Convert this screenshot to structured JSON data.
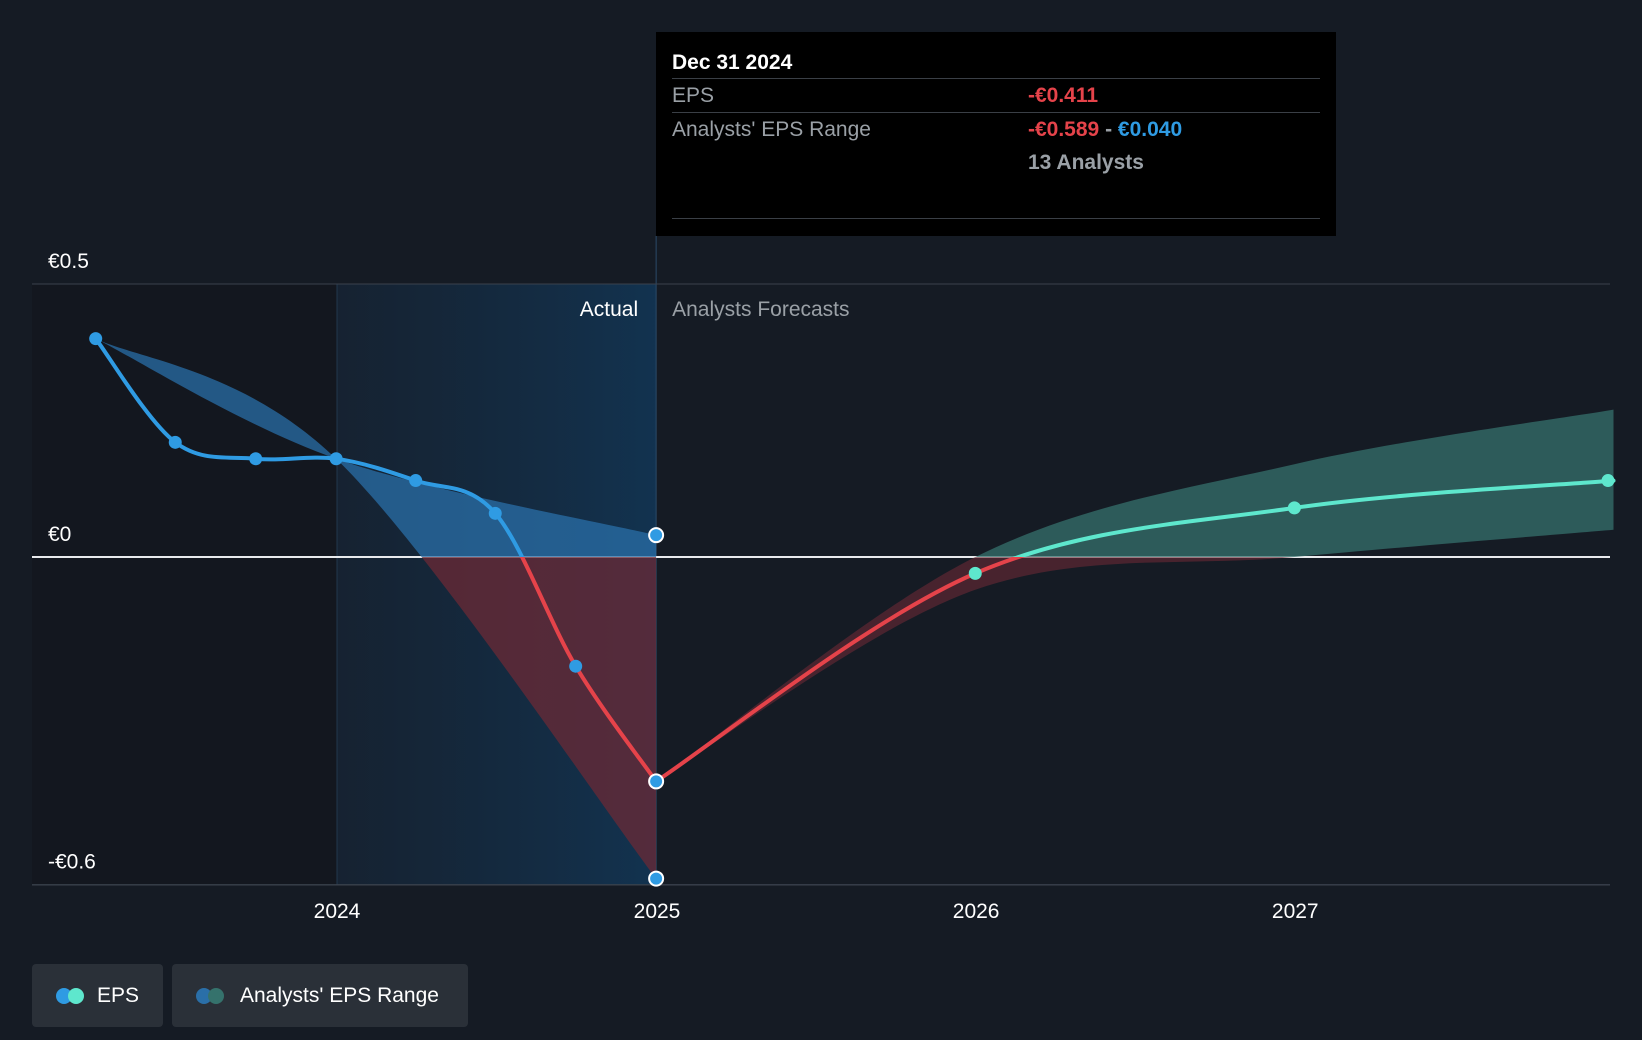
{
  "chart_data": {
    "type": "line",
    "y_axis": {
      "tick_labels": [
        "€0.5",
        "€0",
        "-€0.6"
      ],
      "ticks": [
        0.5,
        0,
        -0.6
      ],
      "ylim": [
        -0.6,
        0.5
      ]
    },
    "x_axis": {
      "tick_labels": [
        "2024",
        "2025",
        "2026",
        "2027"
      ]
    },
    "zones": {
      "actual_label": "Actual",
      "forecast_label": "Analysts Forecasts"
    },
    "series": [
      {
        "name": "EPS",
        "points": [
          {
            "x": "2023-03-31",
            "y": 0.4
          },
          {
            "x": "2023-06-30",
            "y": 0.21
          },
          {
            "x": "2023-09-30",
            "y": 0.18
          },
          {
            "x": "2023-12-31",
            "y": 0.18
          },
          {
            "x": "2024-03-31",
            "y": 0.14
          },
          {
            "x": "2024-06-30",
            "y": 0.08
          },
          {
            "x": "2024-09-30",
            "y": -0.2
          },
          {
            "x": "2024-12-31",
            "y": -0.411
          },
          {
            "x": "2025-12-31",
            "y": -0.03
          },
          {
            "x": "2026-12-31",
            "y": 0.09
          },
          {
            "x": "2027-12-31",
            "y": 0.14
          }
        ]
      },
      {
        "name": "Analysts' EPS Range",
        "past": [
          {
            "x": "2023-03-31",
            "low": 0.4,
            "high": 0.4
          },
          {
            "x": "2023-12-31",
            "low": 0.18,
            "high": 0.18
          },
          {
            "x": "2024-12-31",
            "low": -0.589,
            "high": 0.04
          }
        ],
        "forecast": [
          {
            "x": "2024-12-31",
            "low": -0.411,
            "high": -0.411
          },
          {
            "x": "2025-12-31",
            "low": -0.06,
            "high": 0.0
          },
          {
            "x": "2026-12-31",
            "low": 0.0,
            "high": 0.17
          },
          {
            "x": "2027-12-31",
            "low": 0.05,
            "high": 0.27
          }
        ]
      }
    ],
    "colors": {
      "eps_actual": "#2f9be3",
      "eps_negative": "#e5434a",
      "eps_forecast": "#5ee7cd",
      "range_past": "#2a6fa8",
      "range_forecast": "#35726c",
      "range_negative": "#6b2a35"
    }
  },
  "tooltip": {
    "date": "Dec 31 2024",
    "eps_label": "EPS",
    "eps_value": "-€0.411",
    "range_label": "Analysts' EPS Range",
    "range_low": "-€0.589",
    "range_sep": "-",
    "range_high": "€0.040",
    "analysts": "13 Analysts"
  },
  "legend": {
    "eps_label": "EPS",
    "range_label": "Analysts' EPS Range"
  }
}
